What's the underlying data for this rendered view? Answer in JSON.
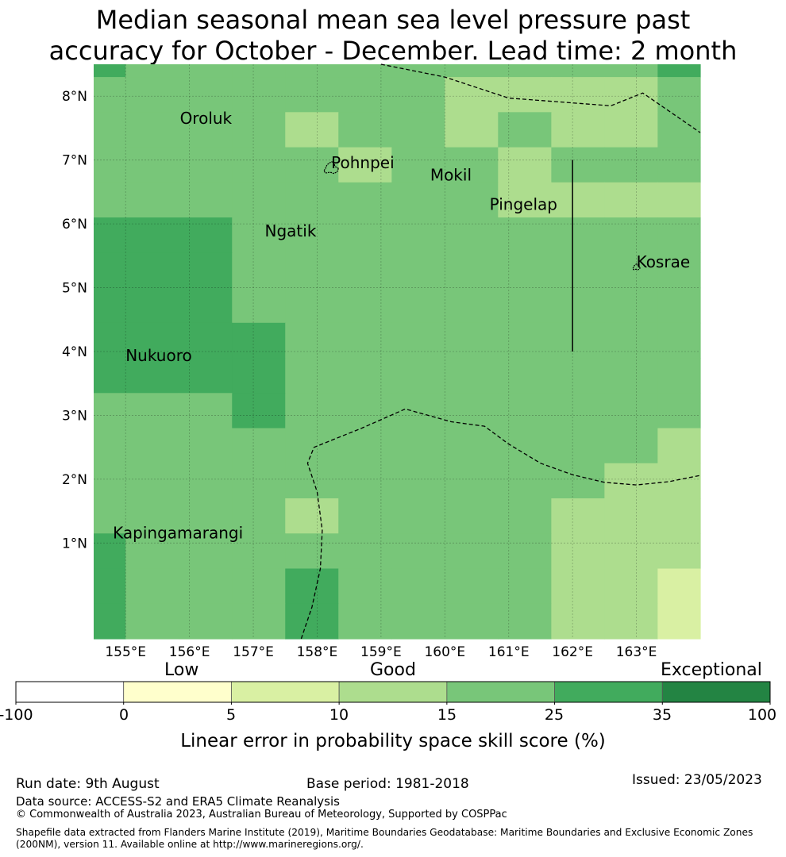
{
  "title": {
    "line1": "Median seasonal mean sea level pressure past",
    "line2": "accuracy for October - December. Lead time: 2 month"
  },
  "map": {
    "lon_range": [
      154.5,
      164
    ],
    "lat_range": [
      -0.5,
      8.5
    ],
    "lon_ticks": [
      155,
      156,
      157,
      158,
      159,
      160,
      161,
      162,
      163
    ],
    "lon_tick_labels": [
      "155°E",
      "156°E",
      "157°E",
      "158°E",
      "159°E",
      "160°E",
      "161°E",
      "162°E",
      "163°E"
    ],
    "lat_ticks": [
      1,
      2,
      3,
      4,
      5,
      6,
      7,
      8
    ],
    "lat_tick_labels": [
      "1°N",
      "2°N",
      "3°N",
      "4°N",
      "5°N",
      "6°N",
      "7°N",
      "8°N"
    ],
    "grid": true,
    "places": [
      {
        "name": "Oroluk",
        "lon": 155.85,
        "lat": 7.57
      },
      {
        "name": "Pohnpei",
        "lon": 158.22,
        "lat": 6.87
      },
      {
        "name": "Mokil",
        "lon": 159.77,
        "lat": 6.68
      },
      {
        "name": "Pingelap",
        "lon": 160.7,
        "lat": 6.22
      },
      {
        "name": "Ngatik",
        "lon": 157.18,
        "lat": 5.8
      },
      {
        "name": "Kosrae",
        "lon": 163.0,
        "lat": 5.32
      },
      {
        "name": "Nukuoro",
        "lon": 155.0,
        "lat": 3.85
      },
      {
        "name": "Kapingamarangi",
        "lon": 154.8,
        "lat": 1.07
      }
    ],
    "skill_grid": {
      "lon_edges": [
        154.5,
        155.0,
        155.833,
        156.667,
        157.5,
        158.333,
        159.167,
        160.0,
        160.833,
        161.667,
        162.5,
        163.333,
        164.0
      ],
      "lat_edges": [
        8.5,
        8.3,
        7.75,
        7.2,
        6.65,
        6.1,
        5.55,
        5.0,
        4.45,
        3.9,
        3.35,
        2.8,
        2.25,
        1.7,
        1.15,
        0.6,
        0.05,
        -0.5
      ],
      "rows": [
        [
          "25-35",
          "15-25",
          "15-25",
          "15-25",
          "15-25",
          "15-25",
          "15-25",
          "15-25",
          "15-25",
          "15-25",
          "15-25",
          "25-35"
        ],
        [
          "15-25",
          "15-25",
          "15-25",
          "15-25",
          "15-25",
          "15-25",
          "15-25",
          "10-15",
          "10-15",
          "10-15",
          "10-15",
          "15-25"
        ],
        [
          "15-25",
          "15-25",
          "15-25",
          "15-25",
          "10-15",
          "15-25",
          "15-25",
          "10-15",
          "15-25",
          "10-15",
          "10-15",
          "15-25"
        ],
        [
          "15-25",
          "15-25",
          "15-25",
          "15-25",
          "15-25",
          "10-15",
          "15-25",
          "15-25",
          "10-15",
          "15-25",
          "15-25",
          "15-25"
        ],
        [
          "15-25",
          "15-25",
          "15-25",
          "15-25",
          "15-25",
          "15-25",
          "15-25",
          "15-25",
          "10-15",
          "10-15",
          "10-15",
          "10-15"
        ],
        [
          "25-35",
          "25-35",
          "25-35",
          "15-25",
          "15-25",
          "15-25",
          "15-25",
          "15-25",
          "15-25",
          "15-25",
          "15-25",
          "15-25"
        ],
        [
          "25-35",
          "25-35",
          "25-35",
          "15-25",
          "15-25",
          "15-25",
          "15-25",
          "15-25",
          "15-25",
          "15-25",
          "15-25",
          "15-25"
        ],
        [
          "25-35",
          "25-35",
          "25-35",
          "15-25",
          "15-25",
          "15-25",
          "15-25",
          "15-25",
          "15-25",
          "15-25",
          "15-25",
          "15-25"
        ],
        [
          "25-35",
          "25-35",
          "25-35",
          "25-35",
          "15-25",
          "15-25",
          "15-25",
          "15-25",
          "15-25",
          "15-25",
          "15-25",
          "15-25"
        ],
        [
          "25-35",
          "25-35",
          "25-35",
          "25-35",
          "15-25",
          "15-25",
          "15-25",
          "15-25",
          "15-25",
          "15-25",
          "15-25",
          "15-25"
        ],
        [
          "15-25",
          "15-25",
          "15-25",
          "25-35",
          "15-25",
          "15-25",
          "15-25",
          "15-25",
          "15-25",
          "15-25",
          "15-25",
          "15-25"
        ],
        [
          "15-25",
          "15-25",
          "15-25",
          "15-25",
          "15-25",
          "15-25",
          "15-25",
          "15-25",
          "15-25",
          "15-25",
          "15-25",
          "10-15"
        ],
        [
          "15-25",
          "15-25",
          "15-25",
          "15-25",
          "15-25",
          "15-25",
          "15-25",
          "15-25",
          "15-25",
          "15-25",
          "10-15",
          "10-15"
        ],
        [
          "15-25",
          "15-25",
          "15-25",
          "15-25",
          "10-15",
          "15-25",
          "15-25",
          "15-25",
          "15-25",
          "10-15",
          "10-15",
          "10-15"
        ],
        [
          "25-35",
          "15-25",
          "15-25",
          "15-25",
          "15-25",
          "15-25",
          "15-25",
          "15-25",
          "15-25",
          "10-15",
          "10-15",
          "10-15"
        ],
        [
          "25-35",
          "15-25",
          "15-25",
          "15-25",
          "25-35",
          "15-25",
          "15-25",
          "15-25",
          "15-25",
          "10-15",
          "10-15",
          "5-10"
        ],
        [
          "25-35",
          "15-25",
          "15-25",
          "15-25",
          "25-35",
          "15-25",
          "15-25",
          "15-25",
          "15-25",
          "10-15",
          "10-15",
          "5-10"
        ]
      ]
    },
    "boundaries": [
      [
        [
          159.0,
          8.5
        ],
        [
          160.0,
          8.3
        ],
        [
          161.0,
          7.97
        ],
        [
          162.6,
          7.85
        ],
        [
          163.1,
          8.05
        ],
        [
          164.0,
          7.43
        ]
      ],
      [
        [
          157.75,
          -0.5
        ],
        [
          157.92,
          0.0
        ],
        [
          158.05,
          0.6
        ],
        [
          158.08,
          1.2
        ],
        [
          158.0,
          1.8
        ],
        [
          157.85,
          2.25
        ],
        [
          157.95,
          2.5
        ],
        [
          158.7,
          2.8
        ],
        [
          159.38,
          3.1
        ],
        [
          160.1,
          2.9
        ],
        [
          160.62,
          2.83
        ],
        [
          161.0,
          2.55
        ],
        [
          161.5,
          2.25
        ],
        [
          162.0,
          2.07
        ],
        [
          162.5,
          1.95
        ],
        [
          163.0,
          1.91
        ],
        [
          163.5,
          1.96
        ],
        [
          164.0,
          2.06
        ]
      ]
    ],
    "meridian_segment": {
      "lon": 162.0,
      "lat_from": 4.0,
      "lat_to": 7.0
    }
  },
  "colorbar": {
    "categories": [
      "Low",
      "Good",
      "Exceptional"
    ],
    "bins": [
      {
        "range": "-100-0",
        "color": "#ffffff"
      },
      {
        "range": "0-5",
        "color": "#ffffcc"
      },
      {
        "range": "5-10",
        "color": "#d9f0a3"
      },
      {
        "range": "10-15",
        "color": "#addd8e"
      },
      {
        "range": "15-25",
        "color": "#78c679"
      },
      {
        "range": "25-35",
        "color": "#41ab5d"
      },
      {
        "range": "35-100",
        "color": "#238443"
      }
    ],
    "tick_labels": [
      "-100",
      "0",
      "5",
      "10",
      "15",
      "25",
      "35",
      "100"
    ],
    "label": "Linear error in probability space skill score (%)"
  },
  "footer": {
    "run_date": "Run date: 9th August",
    "base_period": "Base period: 1981-2018",
    "issued": "Issued: 23/05/2023",
    "data_source": "Data source: ACCESS-S2 and ERA5 Climate Reanalysis",
    "copyright": "© Commonwealth of Australia 2023, Australian Bureau of Meteorology, Supported by COSPPac",
    "shapefile_line1": "Shapefile data extracted from Flanders Marine Institute (2019), Maritime Boundaries Geodatabase: Maritime Boundaries and Exclusive Economic Zones",
    "shapefile_line2": "(200NM), version 11. Available online at http://www.marineregions.org/."
  }
}
